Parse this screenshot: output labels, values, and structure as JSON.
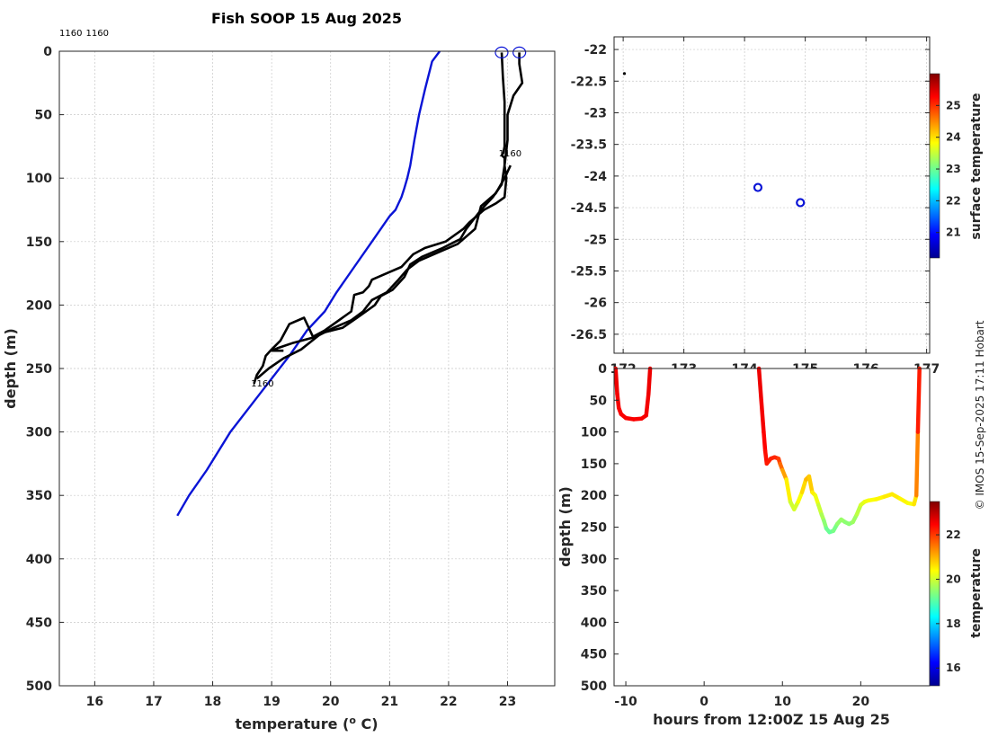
{
  "colors": {
    "model_profile": "#0a14d6",
    "observed_profile": "#000000",
    "surface_marker": "#0a14d6",
    "track_dot": "#000000"
  },
  "stamp": "© IMOS 15-Sep-2025 17:11 Hobart",
  "chart_data": [
    {
      "type": "line",
      "title": "Fish SOOP 15 Aug 2025",
      "xlabel": "temperature (",
      "xlabel_sup": "o",
      "xlabel_tail": " C)",
      "ylabel": "depth (m)",
      "xlim": [
        15.4,
        23.8
      ],
      "ylim": [
        500,
        0
      ],
      "xticks": [
        16,
        17,
        18,
        19,
        20,
        21,
        22,
        23
      ],
      "yticks": [
        0,
        50,
        100,
        150,
        200,
        250,
        300,
        350,
        400,
        450,
        500
      ],
      "grid": true,
      "annotations": [
        {
          "text": "1160",
          "x": 15.4,
          "y": -12
        },
        {
          "text": "1160",
          "x": 15.85,
          "y": -12
        },
        {
          "text": "1160",
          "x": 22.85,
          "y": 83
        },
        {
          "text": "1160",
          "x": 18.65,
          "y": 264
        }
      ],
      "surface_markers": [
        {
          "x": 22.9,
          "y": 1
        },
        {
          "x": 23.2,
          "y": 1
        }
      ],
      "series": [
        {
          "x": [
            21.85,
            21.72,
            21.6,
            21.5,
            21.42,
            21.35,
            21.3,
            21.25,
            21.2,
            21.15,
            21.1,
            21.0,
            20.7,
            20.4,
            20.1,
            19.9,
            19.6,
            19.3,
            18.8,
            18.3,
            17.9,
            17.6,
            17.4
          ],
          "y": [
            0,
            8,
            30,
            50,
            70,
            90,
            100,
            108,
            115,
            120,
            125,
            130,
            150,
            170,
            190,
            205,
            220,
            240,
            270,
            300,
            330,
            350,
            366
          ]
        },
        {
          "x": [
            22.9,
            22.92,
            22.95,
            22.95,
            22.95,
            22.93,
            22.9,
            22.95,
            22.95,
            22.98,
            22.95,
            22.8,
            22.6,
            22.35,
            22.25,
            21.95,
            21.6,
            21.4,
            21.2,
            20.95,
            20.7,
            20.65,
            20.55,
            20.4,
            20.35,
            19.9,
            19.7,
            19.55,
            19.3,
            19.15,
            19.0,
            18.9,
            18.85,
            18.75,
            18.7
          ],
          "y": [
            1,
            20,
            40,
            60,
            75,
            80,
            82,
            84,
            90,
            100,
            115,
            120,
            125,
            135,
            140,
            150,
            155,
            160,
            170,
            175,
            180,
            185,
            190,
            192,
            205,
            220,
            225,
            210,
            215,
            228,
            235,
            240,
            248,
            255,
            262
          ]
        },
        {
          "x": [
            23.2,
            23.2,
            23.25,
            23.1,
            23.0,
            23.0,
            22.95,
            22.9,
            22.75,
            22.55,
            22.3,
            22.2,
            21.9,
            21.55,
            21.35,
            21.25,
            21.05,
            20.85,
            20.75,
            20.6,
            20.45,
            20.2,
            19.85,
            19.5,
            19.2,
            18.95,
            18.75
          ],
          "y": [
            1,
            10,
            25,
            35,
            50,
            70,
            90,
            105,
            115,
            125,
            140,
            148,
            155,
            162,
            168,
            178,
            188,
            193,
            200,
            205,
            210,
            218,
            222,
            235,
            242,
            250,
            258
          ]
        },
        {
          "x": [
            23.05,
            22.95,
            22.8,
            22.55,
            22.45,
            22.15,
            21.85,
            21.5,
            21.3,
            21.15,
            20.95,
            20.7,
            20.55,
            20.35,
            20.05,
            19.75,
            19.35,
            19.1,
            19.0,
            19.2
          ],
          "y": [
            90,
            100,
            112,
            122,
            140,
            152,
            158,
            165,
            172,
            180,
            190,
            196,
            205,
            212,
            218,
            225,
            230,
            234,
            236,
            236
          ]
        }
      ]
    },
    {
      "type": "scatter",
      "xlim": [
        171.85,
        177.05
      ],
      "ylim": [
        -26.8,
        -21.8
      ],
      "xticks": [
        172,
        173,
        174,
        175,
        176,
        177
      ],
      "yticks": [
        -22,
        -22.5,
        -23,
        -23.5,
        -24,
        -24.5,
        -25,
        -25.5,
        -26,
        -26.5
      ],
      "grid": true,
      "points": [
        {
          "x": 172.02,
          "y": -22.38,
          "kind": "track"
        },
        {
          "x": 174.22,
          "y": -24.18,
          "kind": "profile"
        },
        {
          "x": 174.92,
          "y": -24.42,
          "kind": "profile"
        }
      ],
      "colorbar": {
        "label": "surface temperature",
        "range": [
          20.2,
          26.0
        ],
        "ticks": [
          21,
          22,
          23,
          24,
          25
        ]
      }
    },
    {
      "type": "scatter",
      "xlabel": "hours from 12:00Z 15 Aug 25",
      "ylabel": "depth (m)",
      "xlim": [
        -11.5,
        28.8
      ],
      "ylim": [
        500,
        0
      ],
      "xticks": [
        -10,
        0,
        10,
        20
      ],
      "yticks": [
        0,
        50,
        100,
        150,
        200,
        250,
        300,
        350,
        400,
        450,
        500
      ],
      "grid": false,
      "colorbar": {
        "label": "temperature",
        "range": [
          15.2,
          23.5
        ],
        "ticks": [
          16,
          18,
          20,
          22
        ]
      },
      "segments": [
        {
          "hours": [
            -11.3,
            -11.1,
            -10.9,
            -10.6,
            -10.0,
            -9.0,
            -8.0,
            -7.4,
            -7.1,
            -6.9
          ],
          "depth": [
            0,
            40,
            62,
            72,
            78,
            80,
            79,
            74,
            40,
            0
          ],
          "temperature": [
            22.6,
            22.6,
            22.5,
            22.5,
            22.5,
            22.5,
            22.5,
            22.5,
            22.6,
            22.6
          ]
        },
        {
          "hours": [
            7.0,
            7.3,
            7.6,
            7.8,
            8.0,
            8.5,
            9.0,
            9.5,
            9.7,
            10.0,
            10.5,
            11.0,
            11.5,
            12.0,
            12.5,
            13.0,
            13.4,
            13.8,
            14.2,
            14.6,
            15.0,
            15.3,
            15.6,
            16.0,
            16.5,
            17.0,
            17.5,
            18.0,
            18.5,
            19.0,
            19.5,
            20.0,
            20.5,
            21.0,
            22.0,
            23.0,
            24.0,
            25.0,
            26.0,
            26.8,
            27.1,
            27.3,
            27.5
          ],
          "depth": [
            0,
            50,
            100,
            130,
            150,
            142,
            140,
            142,
            150,
            160,
            175,
            210,
            222,
            210,
            195,
            175,
            170,
            195,
            200,
            215,
            230,
            240,
            252,
            258,
            256,
            245,
            238,
            242,
            245,
            242,
            230,
            215,
            210,
            208,
            206,
            202,
            198,
            205,
            212,
            214,
            200,
            100,
            0
          ],
          "temperature": [
            22.6,
            22.6,
            22.5,
            22.4,
            22.3,
            22.2,
            22.2,
            22.1,
            21.8,
            21.4,
            20.9,
            20.1,
            19.9,
            20.2,
            20.5,
            20.9,
            21.0,
            20.6,
            20.4,
            20.1,
            19.8,
            19.6,
            19.3,
            19.1,
            19.2,
            19.4,
            19.6,
            19.5,
            19.4,
            19.5,
            19.7,
            20.0,
            20.2,
            20.3,
            20.4,
            20.5,
            20.6,
            20.5,
            20.4,
            20.3,
            20.9,
            21.9,
            22.6
          ]
        }
      ]
    }
  ]
}
